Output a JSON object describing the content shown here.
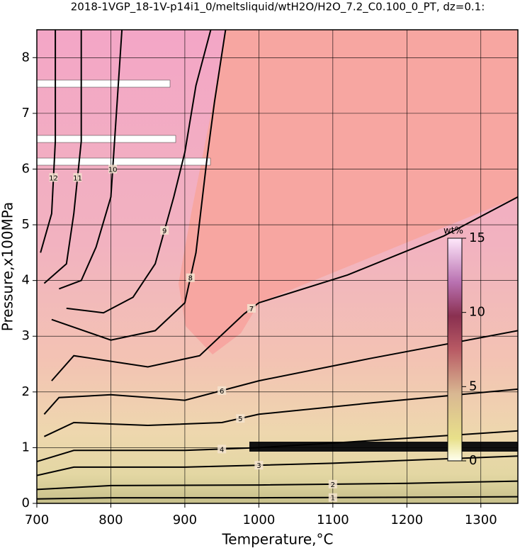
{
  "chart_data": {
    "type": "contour",
    "title": "2018-1VGP_18-1V-p14i1_0/meltsliquid/wtH2O/H2O_7.2_C0.100_0_PT, dz=0.1:",
    "x_label": "Temperature,°C",
    "y_label": "Pressure,x100MPa",
    "xlim": [
      700,
      1350
    ],
    "ylim": [
      0,
      8.5
    ],
    "xticks": [
      700,
      800,
      900,
      1000,
      1100,
      1200,
      1300
    ],
    "yticks": [
      0,
      1,
      2,
      3,
      4,
      5,
      6,
      7,
      8
    ],
    "grid": true,
    "line_color": "#000000",
    "contours": [
      {
        "level": 1,
        "x": [
          700,
          800,
          1000,
          1200,
          1350
        ],
        "y": [
          0.08,
          0.1,
          0.1,
          0.11,
          0.12
        ]
      },
      {
        "level": 2,
        "x": [
          700,
          800,
          1000,
          1200,
          1350
        ],
        "y": [
          0.25,
          0.32,
          0.33,
          0.36,
          0.4
        ]
      },
      {
        "level": 3,
        "x": [
          700,
          750,
          900,
          1100,
          1350
        ],
        "y": [
          0.5,
          0.65,
          0.65,
          0.72,
          0.85
        ]
      },
      {
        "level": 4,
        "x": [
          700,
          750,
          900,
          1000,
          1120,
          1350
        ],
        "y": [
          0.75,
          0.95,
          0.95,
          1.0,
          1.1,
          1.3
        ]
      },
      {
        "level": 5,
        "x": [
          710,
          750,
          850,
          950,
          1000,
          1150,
          1350
        ],
        "y": [
          1.2,
          1.45,
          1.4,
          1.45,
          1.6,
          1.8,
          2.05
        ]
      },
      {
        "level": 6,
        "x": [
          710,
          730,
          800,
          900,
          1000,
          1150,
          1350
        ],
        "y": [
          1.6,
          1.9,
          1.95,
          1.85,
          2.2,
          2.6,
          3.1
        ]
      },
      {
        "level": 7,
        "x": [
          720,
          750,
          850,
          920,
          980,
          1000,
          1120,
          1250,
          1350
        ],
        "y": [
          2.2,
          2.65,
          2.45,
          2.65,
          3.4,
          3.6,
          4.1,
          4.8,
          5.5
        ]
      },
      {
        "level": 8,
        "x": [
          720,
          800,
          860,
          900,
          915,
          930,
          940,
          955
        ],
        "y": [
          3.3,
          2.93,
          3.1,
          3.6,
          4.5,
          6.2,
          7.2,
          8.5
        ]
      },
      {
        "level": 9,
        "x": [
          740,
          790,
          830,
          860,
          885,
          900,
          915,
          935
        ],
        "y": [
          3.5,
          3.42,
          3.7,
          4.3,
          5.5,
          6.3,
          7.5,
          8.5
        ]
      },
      {
        "level": 10,
        "x": [
          730,
          760,
          780,
          800,
          805,
          810,
          815
        ],
        "y": [
          3.85,
          4.0,
          4.6,
          5.5,
          6.5,
          7.5,
          8.5
        ]
      },
      {
        "level": 11,
        "x": [
          710,
          740,
          750,
          760,
          760
        ],
        "y": [
          3.95,
          4.3,
          5.2,
          6.5,
          8.5
        ]
      },
      {
        "level": 12,
        "x": [
          705,
          720,
          725,
          725
        ],
        "y": [
          4.5,
          5.2,
          6.5,
          8.5
        ]
      }
    ],
    "colorbar": {
      "label": "wt%",
      "lim": [
        0,
        15
      ],
      "ticks": [
        0,
        5,
        10,
        15
      ]
    }
  }
}
